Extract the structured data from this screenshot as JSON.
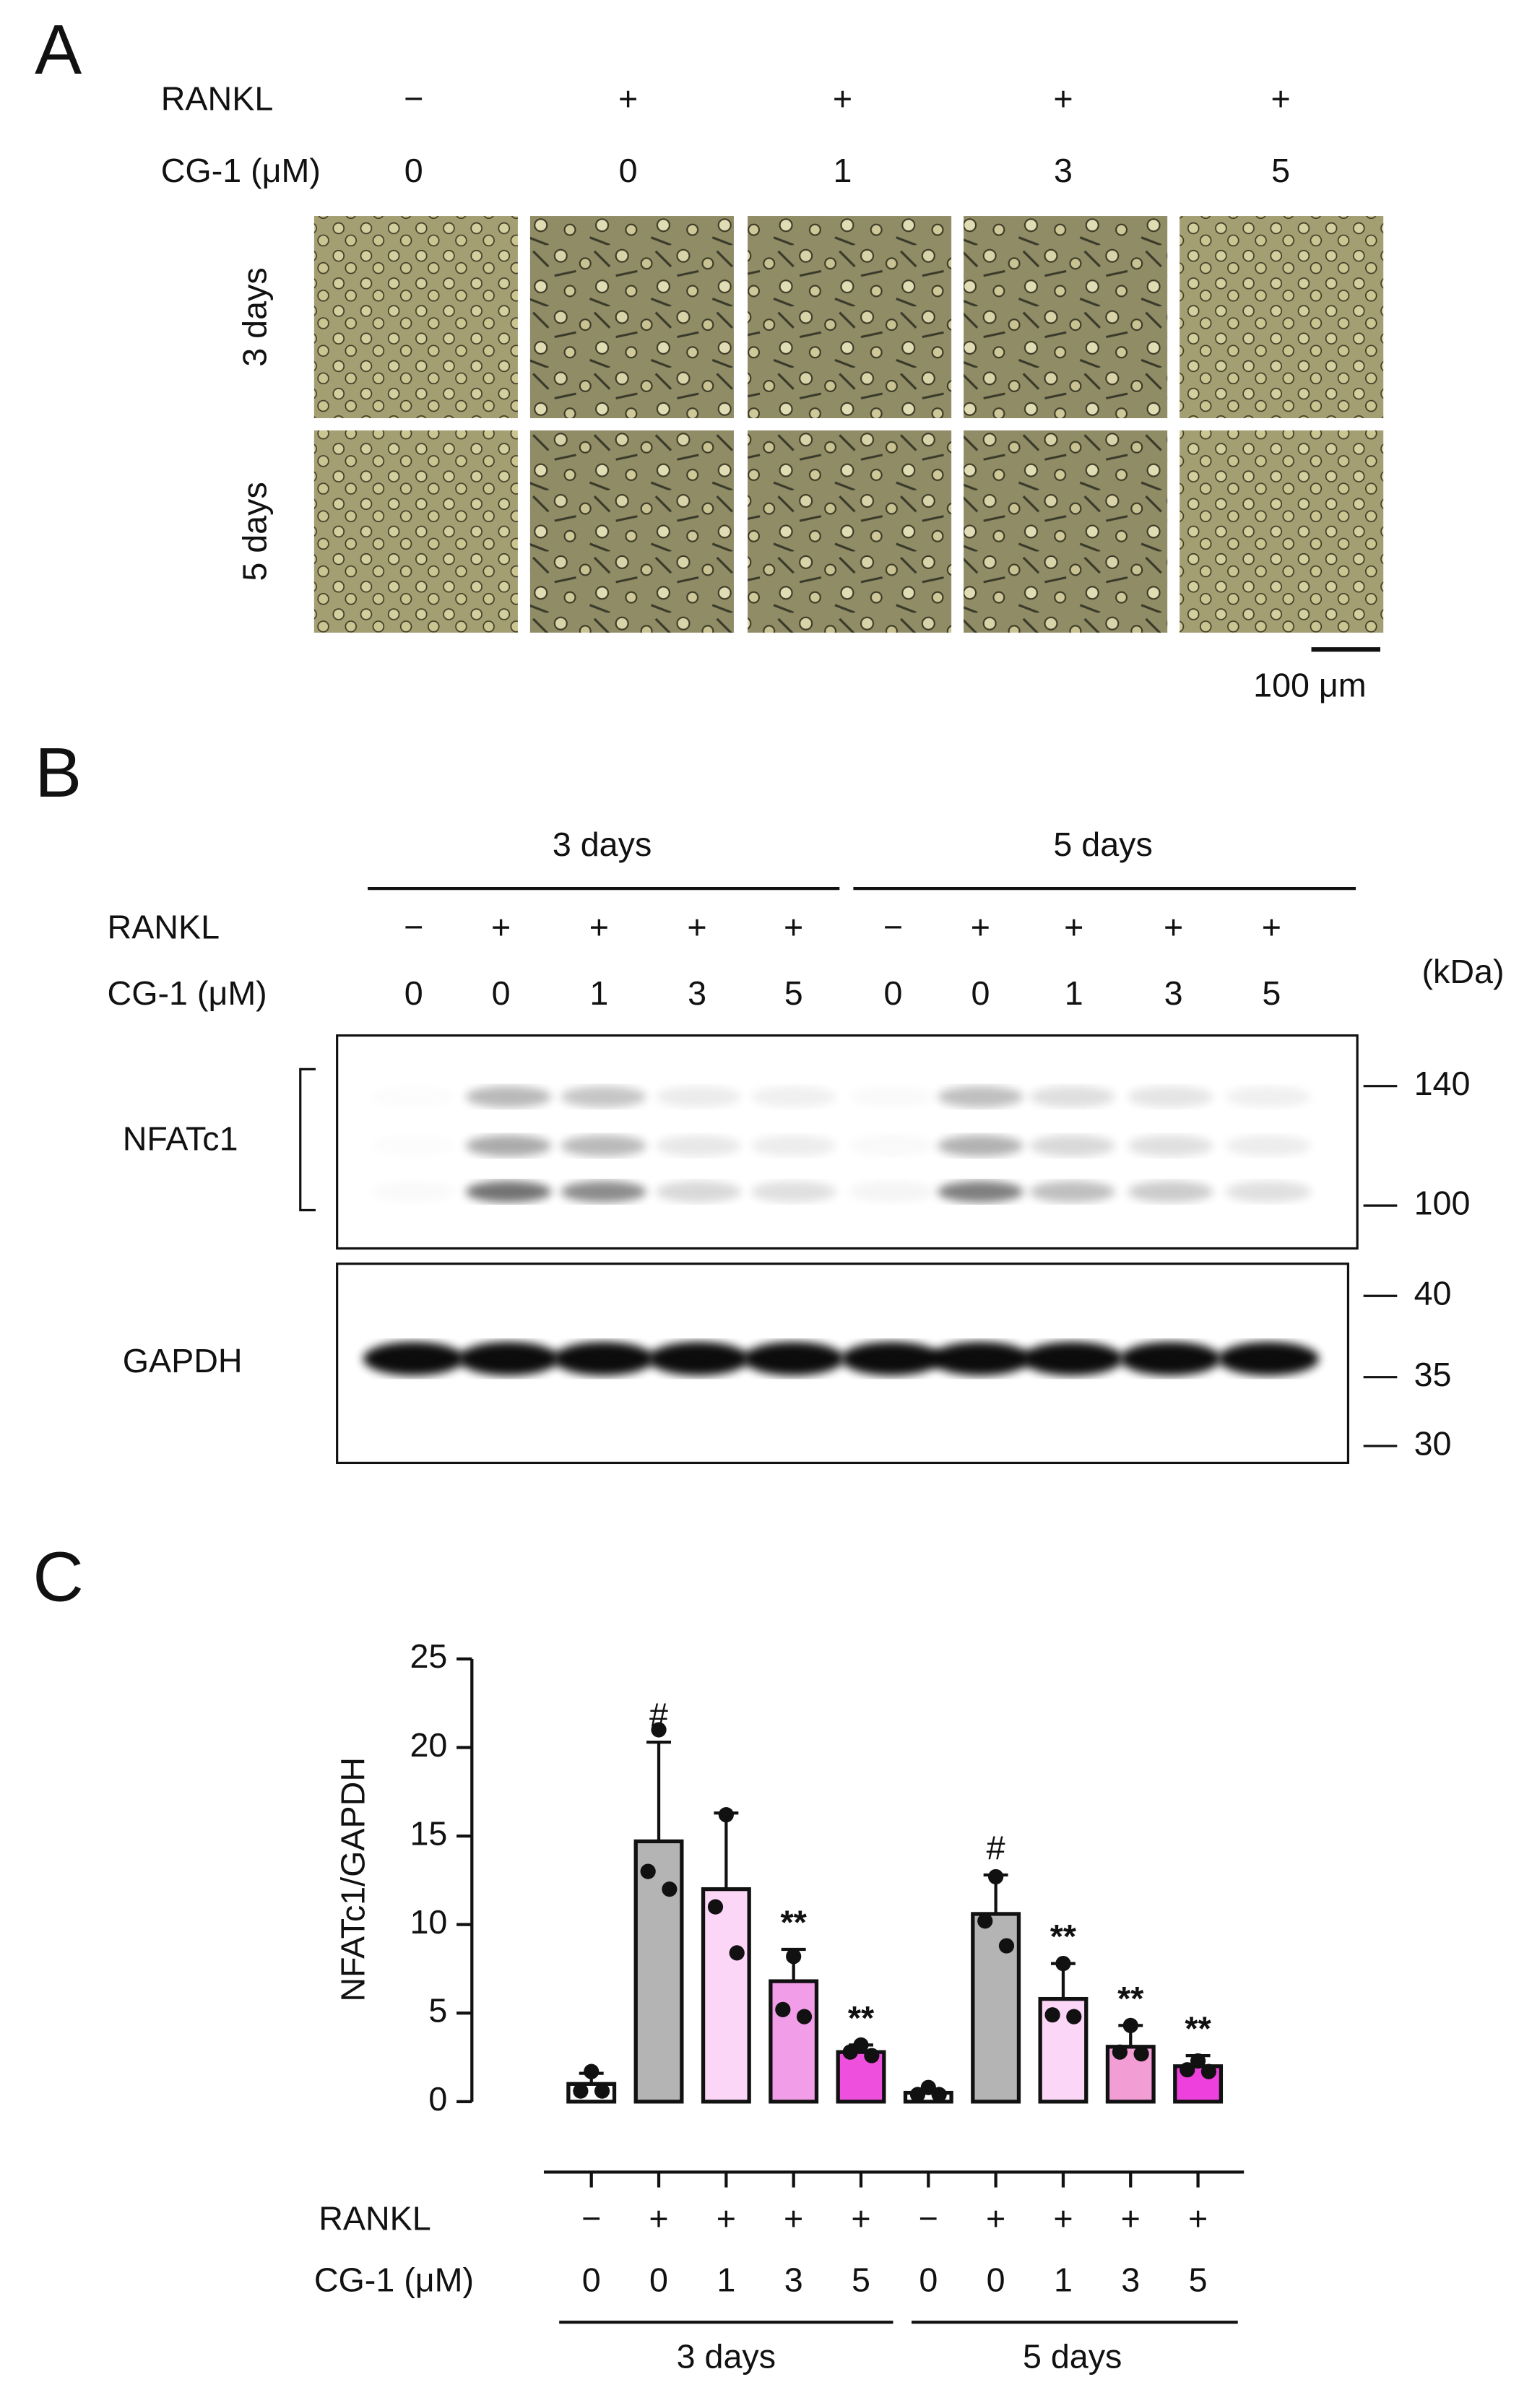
{
  "panel_a": {
    "label": "A",
    "row_labels": [
      "RANKL",
      "CG-1 (μM)"
    ],
    "rankl": [
      "−",
      "+",
      "+",
      "+",
      "+"
    ],
    "cg1": [
      0,
      0,
      1,
      3,
      5
    ],
    "time_labels": [
      "3 days",
      "5 days"
    ],
    "scale_bar": "100 μm"
  },
  "panel_b": {
    "label": "B",
    "groups": [
      "3 days",
      "5 days"
    ],
    "row_labels": [
      "RANKL",
      "CG-1 (μM)"
    ],
    "rankl": [
      "−",
      "+",
      "+",
      "+",
      "+",
      "−",
      "+",
      "+",
      "+",
      "+"
    ],
    "cg1": [
      0,
      0,
      1,
      3,
      5,
      0,
      0,
      1,
      3,
      5
    ],
    "unit": "(kDa)",
    "blots": [
      {
        "name": "NFATc1",
        "markers": [
          140,
          100
        ]
      },
      {
        "name": "GAPDH",
        "markers": [
          40,
          35,
          30
        ]
      }
    ]
  },
  "chart_data": {
    "type": "bar",
    "panel_label": "C",
    "y_label": "NFATc1/GAPDH",
    "categories": [
      "0",
      "0",
      "1",
      "3",
      "5",
      "0",
      "0",
      "1",
      "3",
      "5"
    ],
    "rankl": [
      "−",
      "+",
      "+",
      "+",
      "+",
      "−",
      "+",
      "+",
      "+",
      "+"
    ],
    "row_labels": [
      "RANKL",
      "CG-1 (μM)"
    ],
    "groups": [
      "3 days",
      "5 days"
    ],
    "values": [
      1.0,
      14.7,
      12.0,
      6.8,
      2.8,
      0.5,
      10.6,
      5.8,
      3.1,
      2.0
    ],
    "errors": [
      0.6,
      5.6,
      4.3,
      1.8,
      0.4,
      0.2,
      2.2,
      2.0,
      1.2,
      0.6
    ],
    "points": [
      [
        1.7,
        0.6,
        0.6
      ],
      [
        21.0,
        13.0,
        12.0
      ],
      [
        16.2,
        11.0,
        8.4
      ],
      [
        8.2,
        5.2,
        4.8
      ],
      [
        3.2,
        2.8,
        2.6
      ],
      [
        0.8,
        0.4,
        0.4
      ],
      [
        12.7,
        10.2,
        8.8
      ],
      [
        7.8,
        4.9,
        4.8
      ],
      [
        4.3,
        2.8,
        2.7
      ],
      [
        2.3,
        1.8,
        1.7
      ]
    ],
    "annotations": [
      null,
      "#",
      null,
      "**",
      "**",
      null,
      "#",
      "**",
      "**",
      "**"
    ],
    "colors": [
      "#ffffff",
      "#b4b4b4",
      "#fcd6f6",
      "#f29de8",
      "#ee4fdc",
      "#ffffff",
      "#b4b4b4",
      "#fcd6f6",
      "#f29dd4",
      "#ee40dc"
    ],
    "ylim": [
      0,
      25
    ],
    "yticks": [
      0,
      5,
      10,
      15,
      20,
      25
    ]
  }
}
